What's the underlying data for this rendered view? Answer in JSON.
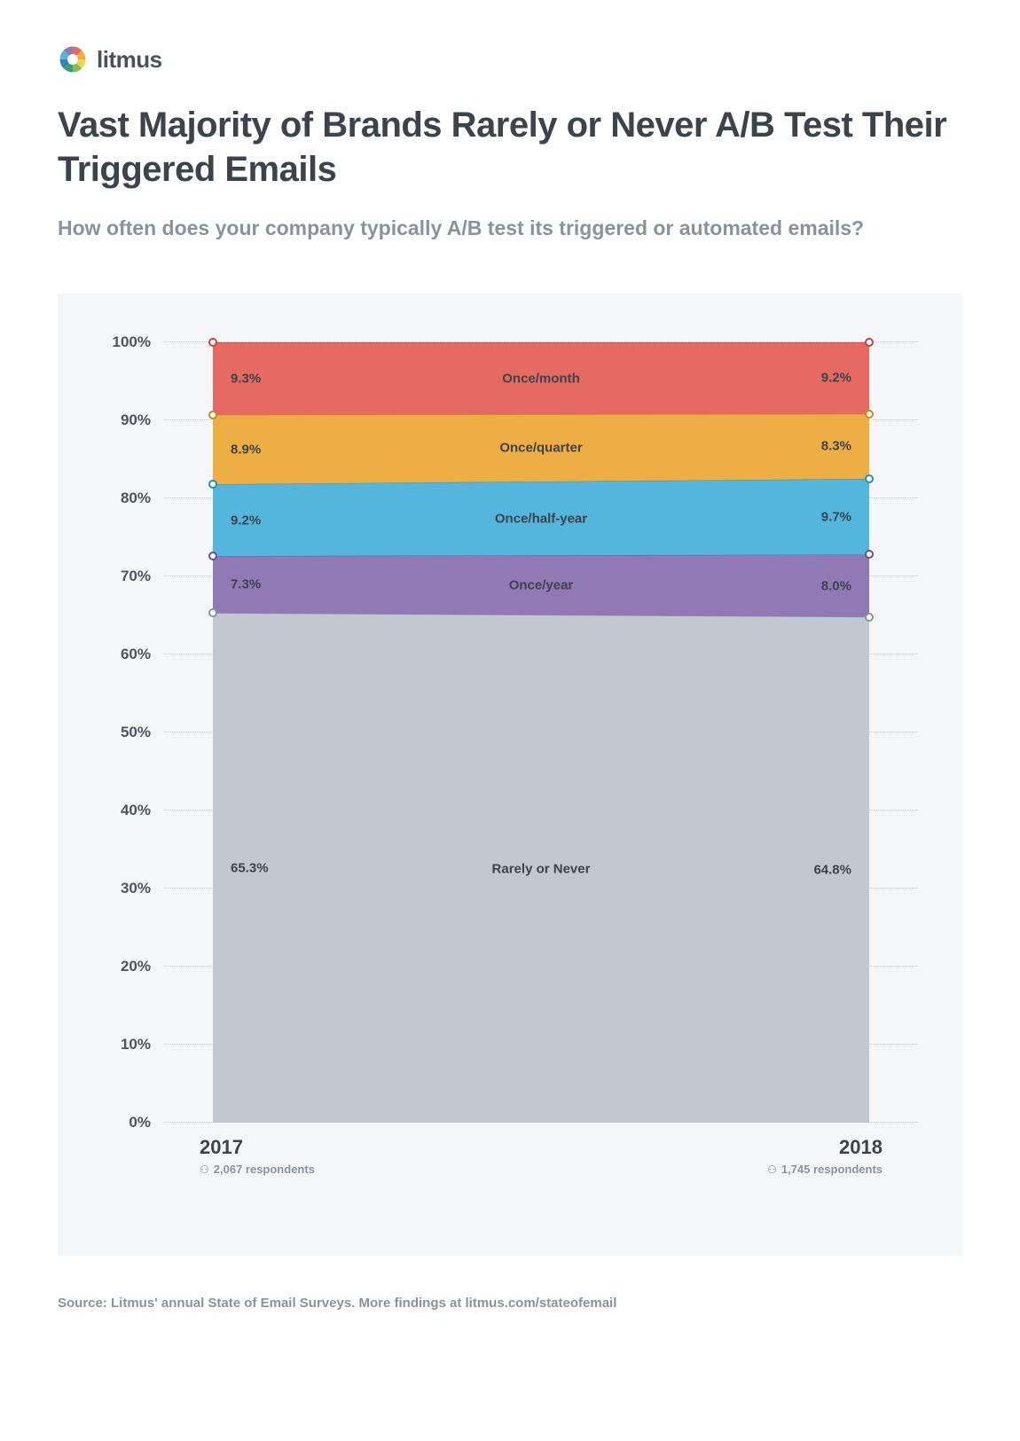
{
  "brand": {
    "name": "litmus"
  },
  "title": "Vast Majority of Brands Rarely or Never A/B Test Their Triggered Emails",
  "subtitle": "How often does your company typically A/B test its triggered or automated emails?",
  "source": "Source: Litmus' annual State of Email Surveys. More findings at litmus.com/stateofemail",
  "chart": {
    "type": "stacked-area-100",
    "background_color": "#f5f6f8",
    "grid_color": "#c9cdd2",
    "ylim": [
      0,
      100
    ],
    "ytick_step": 10,
    "ylabel_suffix": "%",
    "categories": [
      {
        "label": "2017",
        "respondents": "2,067 respondents"
      },
      {
        "label": "2018",
        "respondents": "1,745 respondents"
      }
    ],
    "series": [
      {
        "name": "Rarely or Never",
        "color": "#c2c8cf",
        "marker_border": "#8d949c",
        "values": [
          65.3,
          64.8
        ]
      },
      {
        "name": "Once/year",
        "color": "#9179b6",
        "marker_border": "#6a5196",
        "values": [
          7.3,
          8.0
        ]
      },
      {
        "name": "Once/half-year",
        "color": "#54b5dd",
        "marker_border": "#1f8fc4",
        "values": [
          9.2,
          9.7
        ]
      },
      {
        "name": "Once/quarter",
        "color": "#edae44",
        "marker_border": "#c98a1f",
        "values": [
          8.9,
          8.3
        ]
      },
      {
        "name": "Once/month",
        "color": "#e66a61",
        "marker_border": "#c7443c",
        "values": [
          9.3,
          9.2
        ]
      }
    ],
    "label_fontsize": 15,
    "axis_fontsize": 17,
    "cat_fontsize": 22
  },
  "logo_colors": [
    "#e66a61",
    "#edae44",
    "#f3d34a",
    "#7fbf5a",
    "#3a9e74",
    "#3b7fb5",
    "#54b5dd",
    "#9179b6"
  ]
}
